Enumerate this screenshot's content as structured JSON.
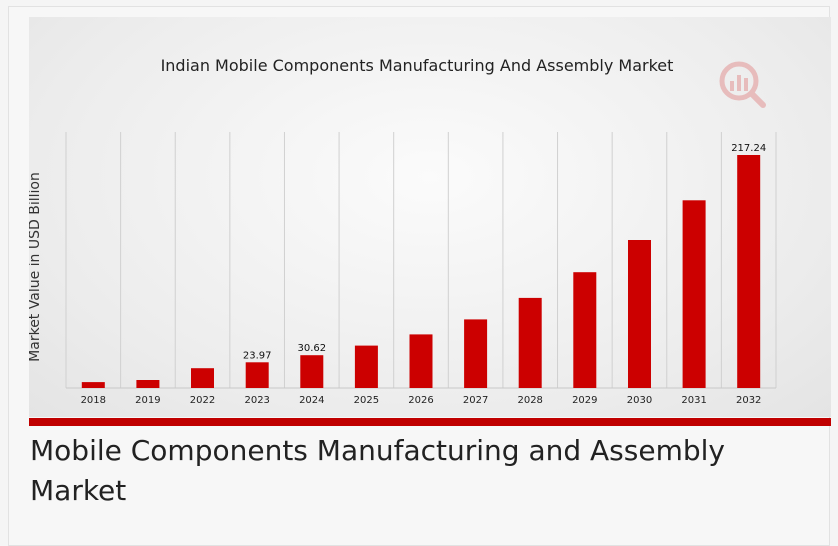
{
  "caption": "Mobile Components Manufacturing and Assembly Market",
  "chart_data": {
    "type": "bar",
    "title": "Indian Mobile Components Manufacturing And Assembly Market",
    "ylabel": "Market Value in USD Billion",
    "xlabel": "",
    "categories": [
      "2018",
      "2019",
      "2022",
      "2023",
      "2024",
      "2025",
      "2026",
      "2027",
      "2028",
      "2029",
      "2030",
      "2031",
      "2032"
    ],
    "values": [
      5.5,
      7.5,
      18.5,
      23.97,
      30.62,
      39.5,
      50,
      64,
      84,
      108,
      138,
      175,
      217.24
    ],
    "data_labels": {
      "3": "23.97",
      "4": "30.62",
      "12": "217.24"
    },
    "ylim": [
      0,
      217.24
    ],
    "grid": "vertical",
    "bar_color": "#cc0000"
  },
  "colors": {
    "accent": "#c00000",
    "bar": "#cc0000",
    "grid": "#d0d0d0",
    "text": "#222222"
  },
  "logo": {
    "icon": "brand-chart-logo-icon"
  }
}
